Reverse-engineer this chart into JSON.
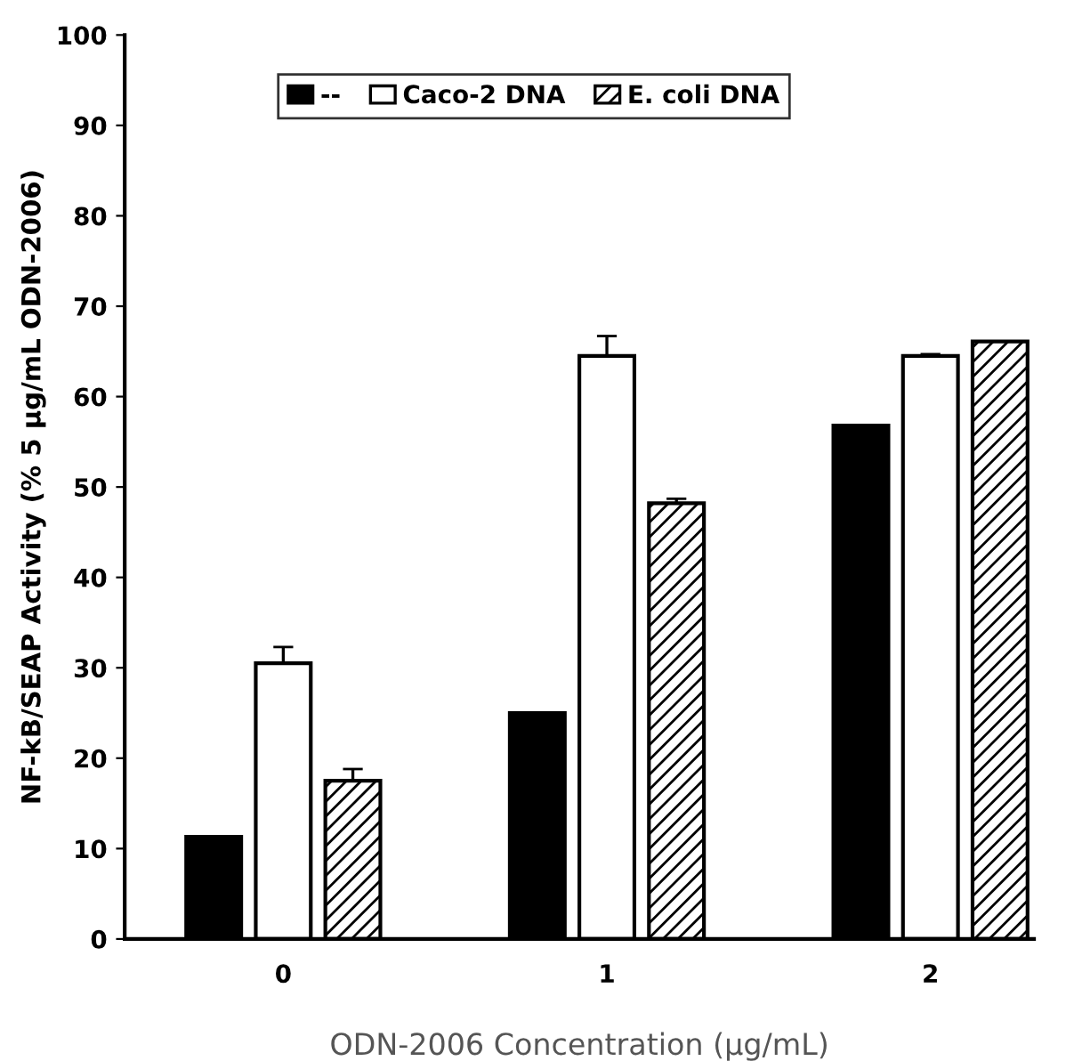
{
  "chart_data": {
    "type": "bar",
    "xlabel": "ODN-2006 Concentration (µg/mL)",
    "ylabel": "NF-kB/SEAP Activity (% 5 µg/mL ODN-2006)",
    "categories": [
      "0",
      "1",
      "2"
    ],
    "ylim": [
      0,
      100
    ],
    "yticks": [
      0,
      10,
      20,
      30,
      40,
      50,
      60,
      70,
      80,
      90,
      100
    ],
    "grid": false,
    "legend": "top",
    "series": [
      {
        "name": "--",
        "color": "#000000",
        "values": [
          11.3,
          25,
          56.8
        ]
      },
      {
        "name": "Caco-2 DNA",
        "color": "#ffffff",
        "values": [
          30.5,
          64.5,
          64.5
        ],
        "errors": [
          1.8,
          2.2,
          0.2
        ]
      },
      {
        "name": "E. coli DNA",
        "color": "#ffffff",
        "values": [
          17.5,
          48.2,
          66.1
        ],
        "errors": [
          1.3,
          0.5,
          null
        ]
      }
    ]
  }
}
